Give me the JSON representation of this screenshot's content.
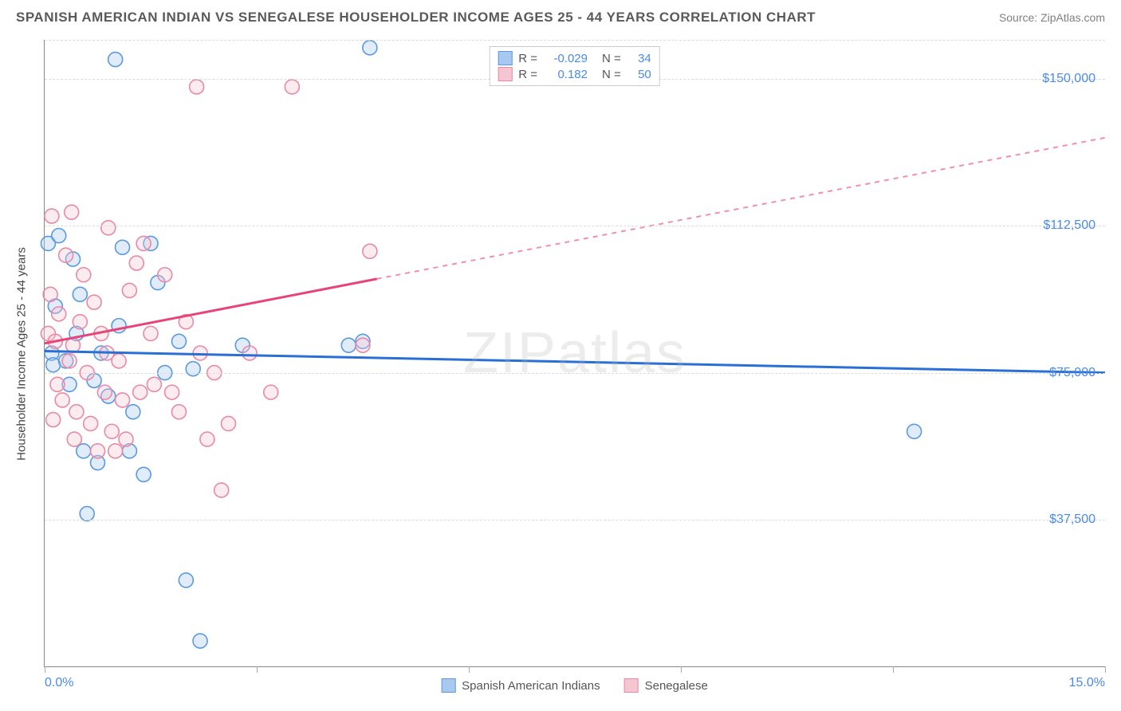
{
  "header": {
    "title": "SPANISH AMERICAN INDIAN VS SENEGALESE HOUSEHOLDER INCOME AGES 25 - 44 YEARS CORRELATION CHART",
    "source": "Source: ZipAtlas.com"
  },
  "watermark": "ZIPatlas",
  "chart": {
    "type": "scatter",
    "y_axis_title": "Householder Income Ages 25 - 44 years",
    "xlim": [
      0,
      15
    ],
    "ylim": [
      0,
      160000
    ],
    "x_ticks": [
      0,
      3,
      6,
      9,
      12,
      15
    ],
    "x_tick_labels_shown": {
      "0": "0.0%",
      "15": "15.0%"
    },
    "y_gridlines": [
      37500,
      75000,
      112500,
      150000,
      160000
    ],
    "y_tick_labels": {
      "37500": "$37,500",
      "75000": "$75,000",
      "112500": "$112,500",
      "150000": "$150,000"
    },
    "background_color": "#ffffff",
    "grid_color": "#dcdcdc",
    "axis_color": "#888888",
    "tick_label_color": "#4a8ae8",
    "marker_radius": 9,
    "marker_fill_opacity": 0.35,
    "marker_stroke_width": 1.6,
    "series": [
      {
        "id": "spanish_american_indians",
        "label": "Spanish American Indians",
        "color_fill": "#a8c8f0",
        "color_stroke": "#5a9ae0",
        "line_color": "#2a6fd6",
        "R": "-0.029",
        "N": "34",
        "regression": {
          "x1": 0,
          "y1": 80500,
          "x2": 15,
          "y2": 75000,
          "solid_until_x": 15
        },
        "points": [
          [
            0.05,
            108000
          ],
          [
            0.1,
            80000
          ],
          [
            0.12,
            77000
          ],
          [
            0.15,
            92000
          ],
          [
            0.2,
            110000
          ],
          [
            0.3,
            78000
          ],
          [
            0.35,
            72000
          ],
          [
            0.4,
            104000
          ],
          [
            0.45,
            85000
          ],
          [
            0.5,
            95000
          ],
          [
            0.6,
            39000
          ],
          [
            0.7,
            73000
          ],
          [
            0.75,
            52000
          ],
          [
            0.8,
            80000
          ],
          [
            0.9,
            69000
          ],
          [
            1.0,
            155000
          ],
          [
            1.1,
            107000
          ],
          [
            1.4,
            49000
          ],
          [
            1.5,
            108000
          ],
          [
            1.6,
            98000
          ],
          [
            1.7,
            75000
          ],
          [
            1.9,
            83000
          ],
          [
            2.0,
            22000
          ],
          [
            2.1,
            76000
          ],
          [
            2.2,
            6500
          ],
          [
            2.8,
            82000
          ],
          [
            4.3,
            82000
          ],
          [
            4.5,
            83000
          ],
          [
            4.6,
            158000
          ],
          [
            12.3,
            60000
          ],
          [
            0.55,
            55000
          ],
          [
            1.2,
            55000
          ],
          [
            1.05,
            87000
          ],
          [
            1.25,
            65000
          ]
        ]
      },
      {
        "id": "senegalese",
        "label": "Senegalese",
        "color_fill": "#f6c5d2",
        "color_stroke": "#e88aa5",
        "line_color": "#e6457a",
        "R": "0.182",
        "N": "50",
        "regression": {
          "x1": 0,
          "y1": 82500,
          "x2": 15,
          "y2": 135000,
          "solid_until_x": 4.7
        },
        "points": [
          [
            0.05,
            85000
          ],
          [
            0.08,
            95000
          ],
          [
            0.1,
            115000
          ],
          [
            0.15,
            83000
          ],
          [
            0.18,
            72000
          ],
          [
            0.2,
            90000
          ],
          [
            0.25,
            68000
          ],
          [
            0.3,
            105000
          ],
          [
            0.35,
            78000
          ],
          [
            0.38,
            116000
          ],
          [
            0.4,
            82000
          ],
          [
            0.45,
            65000
          ],
          [
            0.5,
            88000
          ],
          [
            0.55,
            100000
          ],
          [
            0.6,
            75000
          ],
          [
            0.65,
            62000
          ],
          [
            0.7,
            93000
          ],
          [
            0.75,
            55000
          ],
          [
            0.8,
            85000
          ],
          [
            0.85,
            70000
          ],
          [
            0.9,
            112000
          ],
          [
            0.95,
            60000
          ],
          [
            1.0,
            55000
          ],
          [
            1.05,
            78000
          ],
          [
            1.1,
            68000
          ],
          [
            1.15,
            58000
          ],
          [
            1.2,
            96000
          ],
          [
            1.3,
            103000
          ],
          [
            1.35,
            70000
          ],
          [
            1.4,
            108000
          ],
          [
            1.5,
            85000
          ],
          [
            1.55,
            72000
          ],
          [
            1.7,
            100000
          ],
          [
            1.8,
            70000
          ],
          [
            1.9,
            65000
          ],
          [
            2.0,
            88000
          ],
          [
            2.15,
            148000
          ],
          [
            2.2,
            80000
          ],
          [
            2.3,
            58000
          ],
          [
            2.4,
            75000
          ],
          [
            2.5,
            45000
          ],
          [
            2.6,
            62000
          ],
          [
            2.9,
            80000
          ],
          [
            3.2,
            70000
          ],
          [
            3.5,
            148000
          ],
          [
            4.5,
            82000
          ],
          [
            4.6,
            106000
          ],
          [
            0.12,
            63000
          ],
          [
            0.42,
            58000
          ],
          [
            0.88,
            80000
          ]
        ]
      }
    ],
    "legend_top_layout": [
      "swatch",
      "R =",
      "R_val",
      "N =",
      "N_val"
    ],
    "legend_bottom_order": [
      "spanish_american_indians",
      "senegalese"
    ]
  }
}
